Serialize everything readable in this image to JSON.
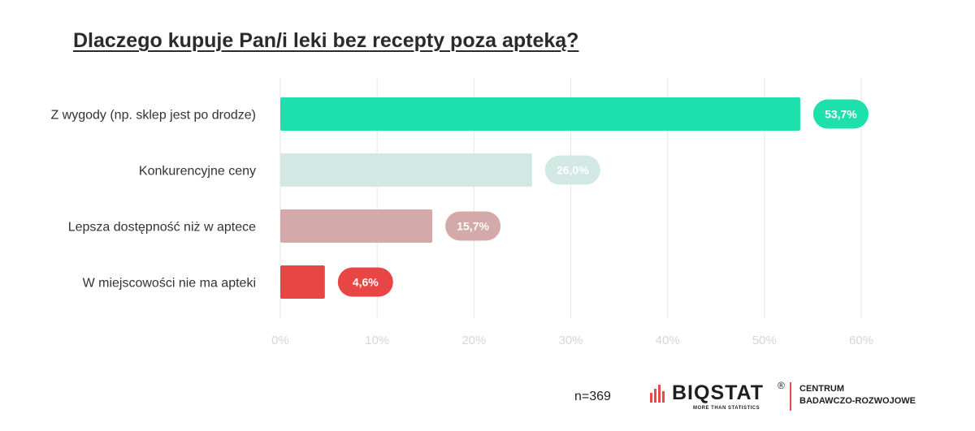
{
  "title": "Dlaczego kupuje Pan/i leki bez recepty poza apteką?",
  "footer": {
    "sample": "n=369"
  },
  "logo": {
    "brand": "BIQSTAT",
    "registered": "®",
    "tagline": "MORE THAN STATISTICS",
    "division_line1": "CENTRUM",
    "division_line2": "BADAWCZO-ROZWOJOWE",
    "accent_color": "#e84a4a"
  },
  "chart_data": {
    "type": "bar",
    "orientation": "horizontal",
    "title": "Dlaczego kupuje Pan/i leki bez recepty poza apteką?",
    "categories": [
      "Z wygody (np. sklep jest po drodze)",
      "Konkurencyjne ceny",
      "Lepsza dostępność niż w aptece",
      "W miejscowości nie ma apteki"
    ],
    "values": [
      53.7,
      26.0,
      15.7,
      4.6
    ],
    "value_labels": [
      "53,7%",
      "26,0%",
      "15,7%",
      "4,6%"
    ],
    "colors": [
      "#1de0ac",
      "#d2e8e2",
      "#d4a9a9",
      "#e84545"
    ],
    "xlim": [
      0,
      60
    ],
    "xticks": [
      0,
      10,
      20,
      30,
      40,
      50,
      60
    ],
    "xtick_labels": [
      "0%",
      "10%",
      "20%",
      "30%",
      "40%",
      "50%",
      "60%"
    ],
    "xlabel": "",
    "ylabel": "",
    "grid": true,
    "legend": "none"
  }
}
